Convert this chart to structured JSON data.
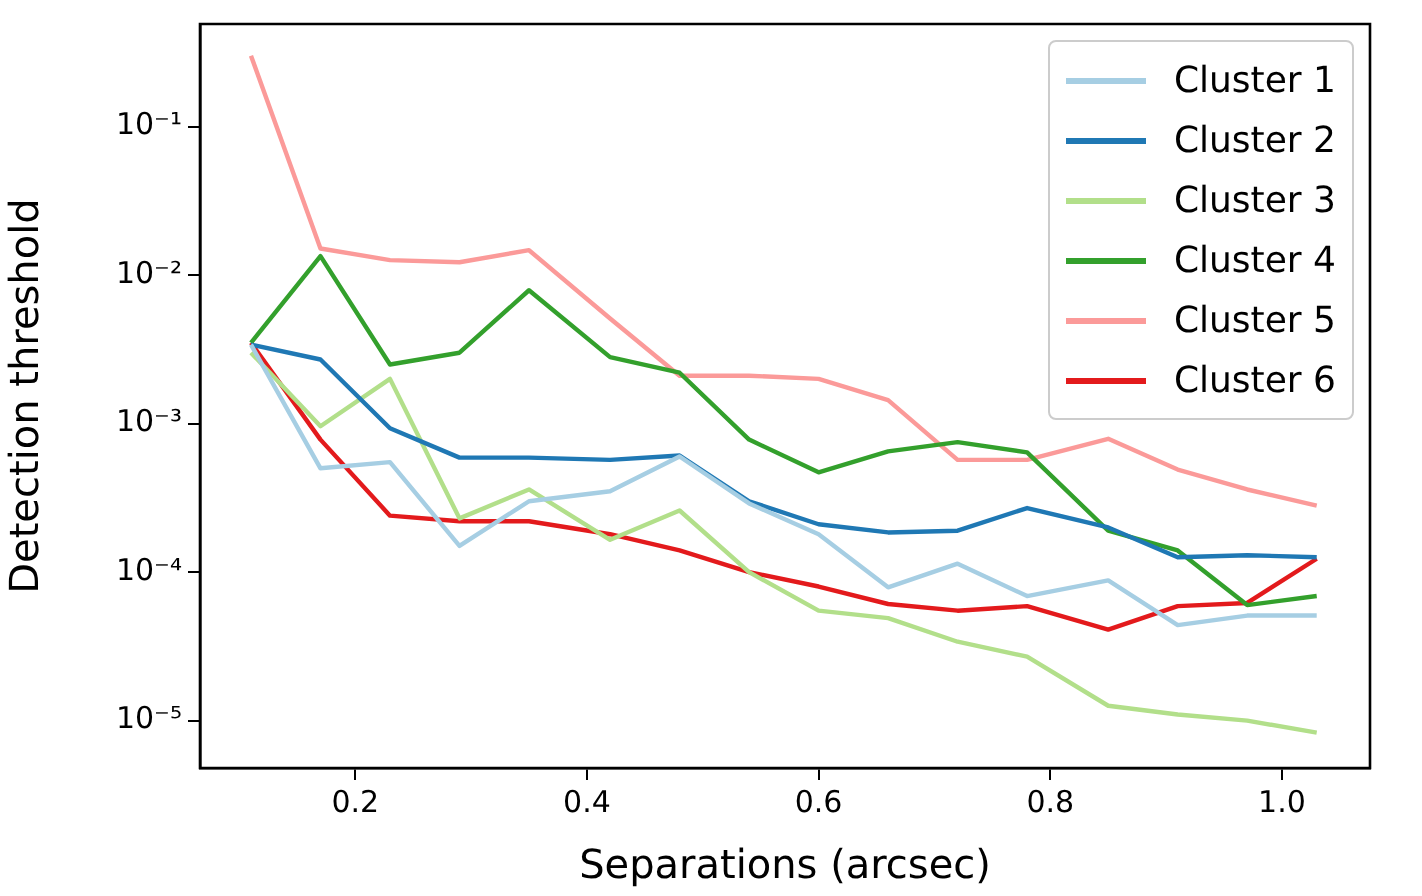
{
  "chart_data": {
    "type": "line",
    "xlabel": "Separations (arcsec)",
    "ylabel": "Detection threshold",
    "log": "y",
    "legend": "top right",
    "grid": false,
    "line_style": "solid",
    "marker": "none",
    "x": [
      0.11,
      0.17,
      0.23,
      0.29,
      0.35,
      0.42,
      0.48,
      0.54,
      0.6,
      0.66,
      0.72,
      0.78,
      0.85,
      0.91,
      0.97,
      1.03
    ],
    "xlim": [
      0.066,
      1.076
    ],
    "xticks": [
      0.2,
      0.4,
      0.6,
      0.8,
      {
        "value": 1,
        "label": "1.0"
      }
    ],
    "ylim": [
      4.8e-06,
      0.49
    ],
    "yticks": [
      {
        "value": 1e-05,
        "label": "10⁻⁵"
      },
      {
        "value": 0.0001,
        "label": "10⁻⁴"
      },
      {
        "value": 0.001,
        "label": "10⁻³"
      },
      {
        "value": 0.01,
        "label": "10⁻²"
      },
      {
        "value": 0.1,
        "label": "10⁻¹"
      }
    ],
    "series": [
      {
        "name": "Cluster 1",
        "color": "#a6cee3",
        "values": [
          0.0034,
          0.0005,
          0.00055,
          0.00015,
          0.0003,
          0.00035,
          0.0006,
          0.00029,
          0.00018,
          7.9e-05,
          0.000114,
          6.9e-05,
          8.8e-05,
          4.4e-05,
          5.1e-05,
          5.1e-05
        ]
      },
      {
        "name": "Cluster 2",
        "color": "#1f78b4",
        "values": [
          0.0034,
          0.0027,
          0.00093,
          0.00059,
          0.00059,
          0.00057,
          0.00061,
          0.0003,
          0.00021,
          0.000185,
          0.00019,
          0.00027,
          0.0002,
          0.000126,
          0.00013,
          0.000126
        ]
      },
      {
        "name": "Cluster 3",
        "color": "#b2df8a",
        "values": [
          0.003,
          0.00096,
          0.002,
          0.00023,
          0.00036,
          0.000165,
          0.00026,
          0.0001,
          5.5e-05,
          4.9e-05,
          3.4e-05,
          2.7e-05,
          1.26e-05,
          1.1e-05,
          1e-05,
          8.3e-06
        ]
      },
      {
        "name": "Cluster 4",
        "color": "#33a02c",
        "values": [
          0.0035,
          0.0134,
          0.0025,
          0.003,
          0.0079,
          0.0028,
          0.0022,
          0.00078,
          0.00047,
          0.00065,
          0.00075,
          0.00064,
          0.00019,
          0.00014,
          6e-05,
          6.9e-05
        ]
      },
      {
        "name": "Cluster 5",
        "color": "#fb9a99",
        "values": [
          0.3,
          0.0151,
          0.0126,
          0.0122,
          0.0147,
          0.0051,
          0.0021,
          0.0021,
          0.002,
          0.00144,
          0.00057,
          0.00057,
          0.00079,
          0.00049,
          0.00036,
          0.00028
        ]
      },
      {
        "name": "Cluster 6",
        "color": "#e31a1c",
        "values": [
          0.0035,
          0.00078,
          0.00024,
          0.00022,
          0.00022,
          0.00018,
          0.00014,
          0.0001,
          8e-05,
          6.1e-05,
          5.5e-05,
          5.9e-05,
          4.1e-05,
          5.9e-05,
          6.2e-05,
          0.000123
        ]
      }
    ]
  }
}
